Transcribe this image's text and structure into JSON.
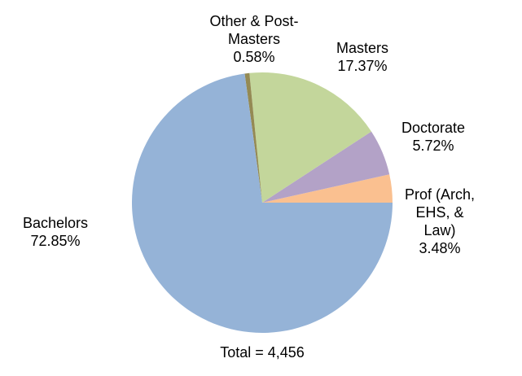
{
  "chart_data": {
    "type": "pie",
    "categories": [
      "Prof (Arch, EHS, & Law)",
      "Doctorate",
      "Masters",
      "Other & Post-Masters",
      "Bachelors"
    ],
    "values": [
      3.48,
      5.72,
      17.37,
      0.58,
      72.85
    ],
    "value_labels": [
      "3.48%",
      "5.72%",
      "17.37%",
      "0.58%",
      "72.85%"
    ],
    "colors": [
      "#fac090",
      "#b3a2c7",
      "#c3d69b",
      "#948a54",
      "#95b3d7"
    ],
    "annotation": "Total = 4,456"
  }
}
